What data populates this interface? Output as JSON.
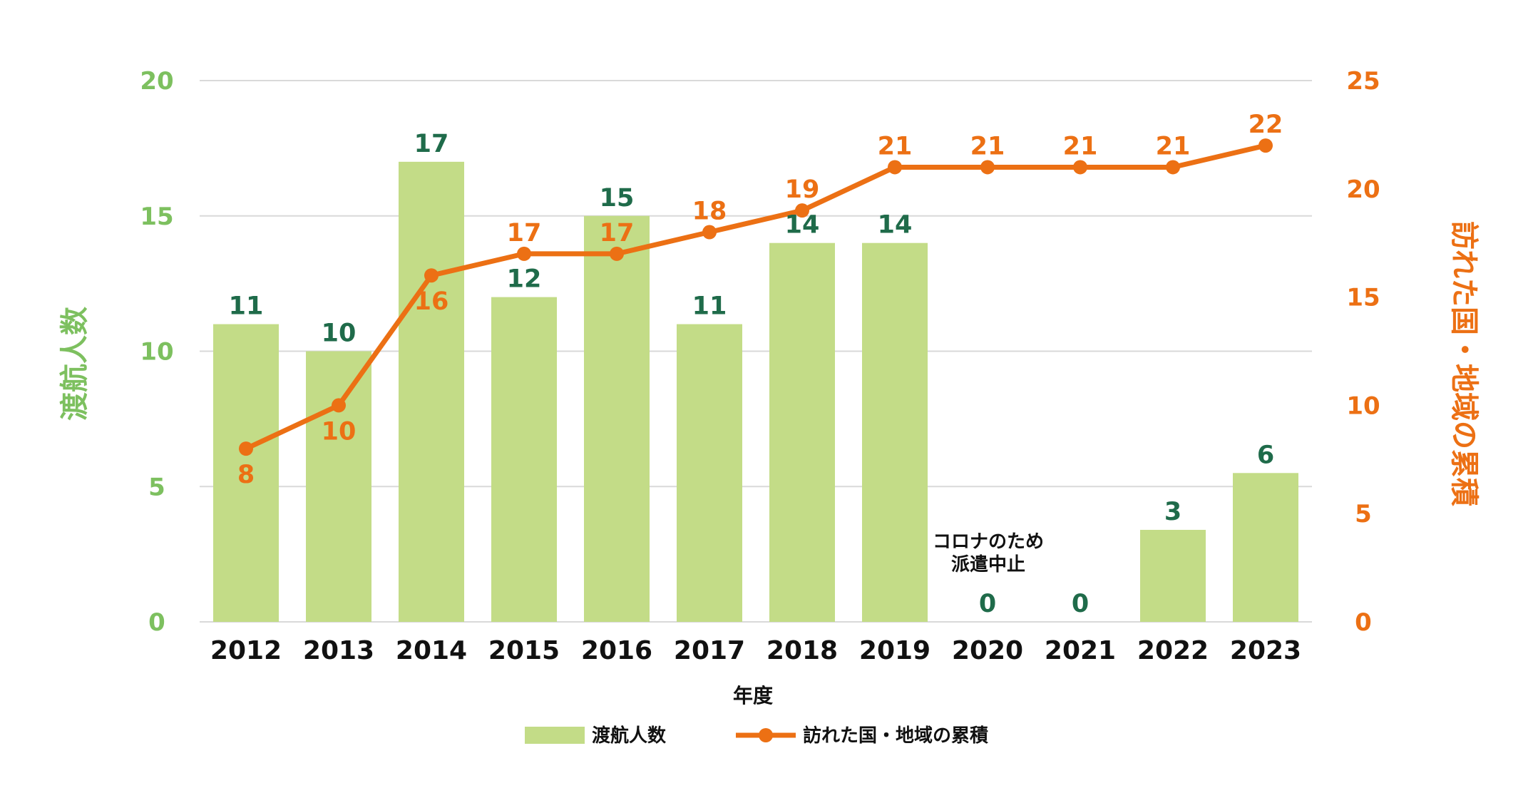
{
  "chart_data": {
    "type": "bar",
    "categories": [
      "2012",
      "2013",
      "2014",
      "2015",
      "2016",
      "2017",
      "2018",
      "2019",
      "2020",
      "2021",
      "2022",
      "2023"
    ],
    "series": [
      {
        "name": "渡航人数",
        "type": "bar",
        "axis": "left",
        "values": [
          11,
          10,
          17,
          12,
          15,
          11,
          14,
          14,
          0,
          0,
          3.4,
          5.5
        ],
        "labels": [
          "11",
          "10",
          "17",
          "12",
          "15",
          "11",
          "14",
          "14",
          "0",
          "0",
          "3",
          "6"
        ]
      },
      {
        "name": "訪れた国・地域の累積",
        "type": "line",
        "axis": "right",
        "values": [
          8,
          10,
          16,
          17,
          17,
          18,
          19,
          21,
          21,
          21,
          21,
          22
        ],
        "labels": [
          "8",
          "10",
          "16",
          "17",
          "17",
          "18",
          "19",
          "21",
          "21",
          "21",
          "21",
          "22"
        ]
      }
    ],
    "xlabel": "年度",
    "ylabel": "渡航人数",
    "y2label": "訪れた国・地域の累積",
    "ylim": [
      0,
      20
    ],
    "y2lim": [
      0,
      25
    ],
    "yticks": [
      "0",
      "5",
      "10",
      "15",
      "20"
    ],
    "y2ticks": [
      "0",
      "5",
      "10",
      "15",
      "20",
      "25"
    ],
    "annotation": [
      "コロナのため",
      "派遣中止"
    ],
    "grid": true,
    "legend_position": "bottom",
    "colors": {
      "bar": "#c3dc87",
      "line": "#ec7014",
      "left_axis": "#7dc05f",
      "right_axis": "#ec7014",
      "bar_label": "#1f6b4a",
      "grid": "#d9d9d9"
    }
  }
}
